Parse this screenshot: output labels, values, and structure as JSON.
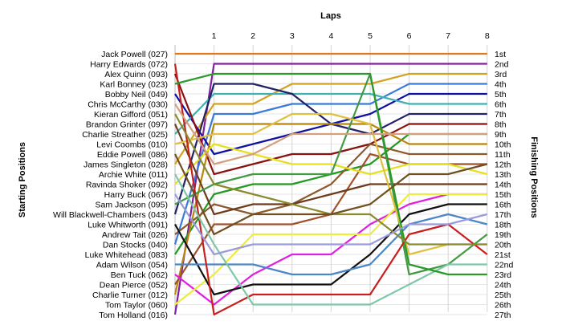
{
  "chart_data": {
    "type": "line",
    "title": "",
    "xlabel": "Laps",
    "ylabel_left": "Starting Positions",
    "ylabel_right": "Finishing Positions",
    "x": [
      0,
      1,
      2,
      3,
      4,
      5,
      6,
      7,
      8
    ],
    "x_tick_labels": [
      "1",
      "2",
      "3",
      "4",
      "5",
      "6",
      "7",
      "8"
    ],
    "ylim": [
      1,
      27
    ],
    "grid": true,
    "starting_labels": [
      "Jack Powell (027)",
      "Harry Edwards (072)",
      "Alex Quinn (093)",
      "Karl Bonney (023)",
      "Bobby Neil (049)",
      "Chris McCarthy (030)",
      "Kieran Gifford (051)",
      "Brandon Grinter (097)",
      "Charlie Streather (025)",
      "Levi Coombs (010)",
      "Eddie Powell (086)",
      "James Singleton (028)",
      "Archie White (011)",
      "Ravinda Shoker (092)",
      "Harry Buck (067)",
      "Sam Jackson (095)",
      "Will Blackwell-Chambers (043)",
      "Luke Whitworth (091)",
      "Andrew Tait (026)",
      "Dan Stocks (040)",
      "Luke Whitehead (083)",
      "Adam Wilson (054)",
      "Ben Tuck (062)",
      "Dean Pierce (052)",
      "Charlie Turner (012)",
      "Tom Taylor (060)",
      "Tom Holland (016)"
    ],
    "finishing_labels": [
      "1st",
      "2nd",
      "3rd",
      "4th",
      "5th",
      "6th",
      "7th",
      "8th",
      "9th",
      "10th",
      "11th",
      "12th",
      "13th",
      "14th",
      "15th",
      "16th",
      "17th",
      "18th",
      "19th",
      "20th",
      "21st",
      "22nd",
      "23rd",
      "24th",
      "25th",
      "26th",
      "27th"
    ],
    "series": [
      {
        "color": "#e07820",
        "values": [
          1,
          1,
          1,
          1,
          1,
          1,
          1,
          1,
          1
        ]
      },
      {
        "color": "#8020a0",
        "values": [
          27,
          2,
          2,
          2,
          2,
          2,
          2,
          2,
          2
        ]
      },
      {
        "color": "#d4a020",
        "values": [
          12,
          6,
          6,
          4,
          4,
          4,
          3,
          3,
          3
        ]
      },
      {
        "color": "#3a7ad8",
        "values": [
          20,
          7,
          7,
          6,
          6,
          6,
          4,
          4,
          4
        ]
      },
      {
        "color": "#1010a0",
        "values": [
          5,
          11,
          10,
          9,
          8,
          7,
          5,
          5,
          5
        ]
      },
      {
        "color": "#40b0b0",
        "values": [
          9,
          5,
          5,
          5,
          5,
          5,
          6,
          6,
          6
        ]
      },
      {
        "color": "#222266",
        "values": [
          17,
          4,
          4,
          5,
          8,
          9,
          7,
          7,
          7
        ]
      },
      {
        "color": "#8b1010",
        "values": [
          3,
          13,
          12,
          11,
          11,
          10,
          8,
          8,
          8
        ]
      },
      {
        "color": "#229922",
        "values": [
          21,
          15,
          14,
          14,
          13,
          12,
          9,
          9,
          9
        ]
      },
      {
        "color": "#b8860b",
        "values": [
          25,
          8,
          8,
          8,
          8,
          8,
          10,
          10,
          10
        ]
      },
      {
        "color": "#8b5a2b",
        "values": [
          19,
          16,
          17,
          16,
          14,
          10,
          11,
          11,
          11
        ]
      },
      {
        "color": "#a0522d",
        "values": [
          24,
          18,
          18,
          18,
          17,
          11,
          12,
          12,
          12
        ]
      },
      {
        "color": "#e6e020",
        "values": [
          14,
          10,
          11,
          12,
          12,
          13,
          12,
          12,
          13
        ]
      },
      {
        "color": "#6b3b1b",
        "values": [
          8,
          17,
          16,
          16,
          15,
          14,
          14,
          14,
          14
        ]
      },
      {
        "color": "#e020e0",
        "values": [
          23,
          26,
          23,
          21,
          21,
          18,
          16,
          15,
          15
        ]
      },
      {
        "color": "#ecec40",
        "values": [
          26,
          23,
          19,
          19,
          19,
          19,
          15,
          15,
          15
        ]
      },
      {
        "color": "#101010",
        "values": [
          18,
          25,
          24,
          24,
          24,
          21,
          17,
          16,
          16
        ]
      },
      {
        "color": "#4a86c8",
        "values": [
          22,
          22,
          22,
          23,
          23,
          22,
          18,
          17,
          18
        ]
      },
      {
        "color": "#449944",
        "values": [
          16,
          14,
          13,
          13,
          13,
          3,
          23,
          22,
          19
        ]
      },
      {
        "color": "#e0c040",
        "values": [
          10,
          9,
          9,
          7,
          7,
          8,
          21,
          20,
          20
        ]
      },
      {
        "color": "#c82020",
        "values": [
          2,
          27,
          25,
          25,
          25,
          25,
          19,
          18,
          21
        ]
      },
      {
        "color": "#7ec8a8",
        "values": [
          13,
          20,
          26,
          26,
          26,
          26,
          24,
          22,
          22
        ]
      },
      {
        "color": "#2a9a2a",
        "values": [
          4,
          3,
          3,
          3,
          3,
          3,
          22,
          23,
          23
        ]
      },
      {
        "color": "#8a8a30",
        "values": [
          7,
          14,
          15,
          16,
          17,
          17,
          20,
          20,
          20
        ]
      },
      {
        "color": "#705020",
        "values": [
          11,
          19,
          17,
          17,
          17,
          16,
          13,
          13,
          12
        ]
      },
      {
        "color": "#9a9adc",
        "values": [
          15,
          21,
          20,
          20,
          20,
          20,
          18,
          18,
          17
        ]
      },
      {
        "color": "#d2a080",
        "values": [
          6,
          12,
          11,
          9,
          9,
          9,
          9,
          9,
          9
        ]
      }
    ]
  }
}
